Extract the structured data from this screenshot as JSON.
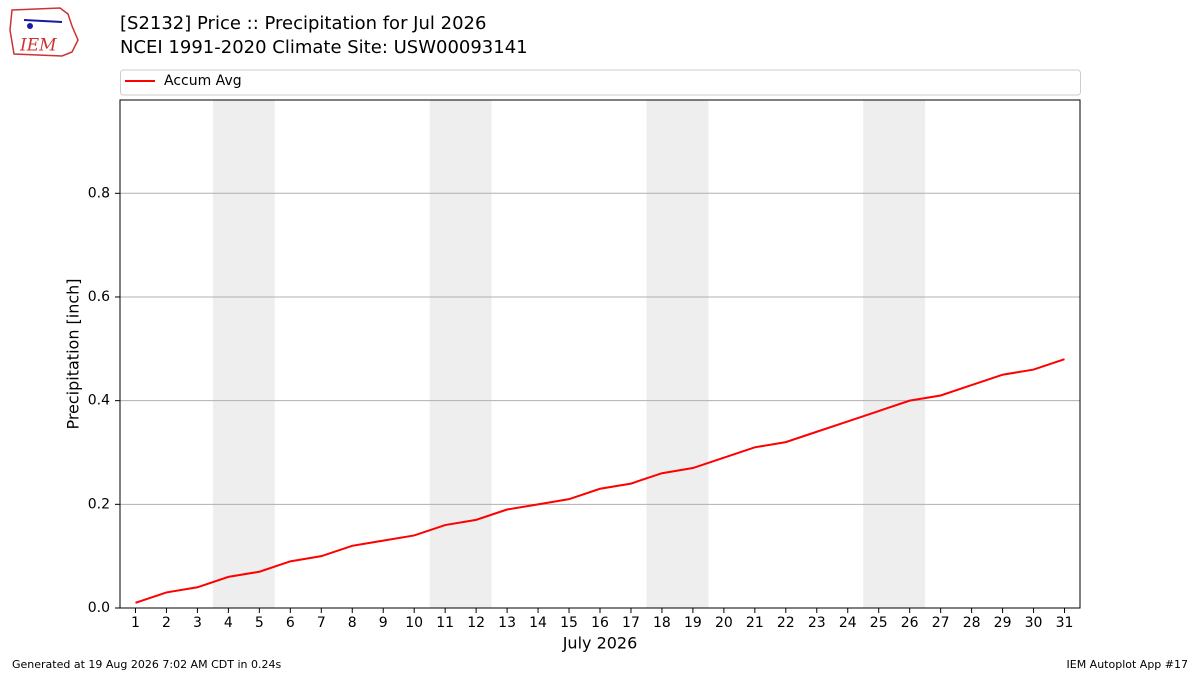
{
  "logo": "IEM",
  "footer_left": "Generated at 19 Aug 2026 7:02 AM CDT in 0.24s",
  "footer_right": "IEM Autoplot App #17",
  "chart_data": {
    "type": "line",
    "title": "[S2132] Price :: Precipitation for Jul 2026",
    "subtitle": "NCEI 1991-2020 Climate Site: USW00093141",
    "x_label": "July 2026",
    "y_label": "Precipitation [inch]",
    "categories": [
      "1",
      "2",
      "3",
      "4",
      "5",
      "6",
      "7",
      "8",
      "9",
      "10",
      "11",
      "12",
      "13",
      "14",
      "15",
      "16",
      "17",
      "18",
      "19",
      "20",
      "21",
      "22",
      "23",
      "24",
      "25",
      "26",
      "27",
      "28",
      "29",
      "30",
      "31"
    ],
    "series": [
      {
        "name": "Accum Avg",
        "color": "#ff0000",
        "values": [
          0.01,
          0.03,
          0.04,
          0.06,
          0.07,
          0.09,
          0.1,
          0.12,
          0.13,
          0.14,
          0.16,
          0.17,
          0.19,
          0.2,
          0.21,
          0.23,
          0.24,
          0.26,
          0.27,
          0.29,
          0.31,
          0.32,
          0.34,
          0.36,
          0.38,
          0.4,
          0.41,
          0.43,
          0.45,
          0.46,
          0.48
        ]
      }
    ],
    "ylim": [
      0,
      0.98
    ],
    "yticks": [
      {
        "value": 0,
        "label": "0.0"
      },
      0.2,
      0.4,
      0.6,
      0.8
    ],
    "grid": true,
    "legend": "top"
  }
}
